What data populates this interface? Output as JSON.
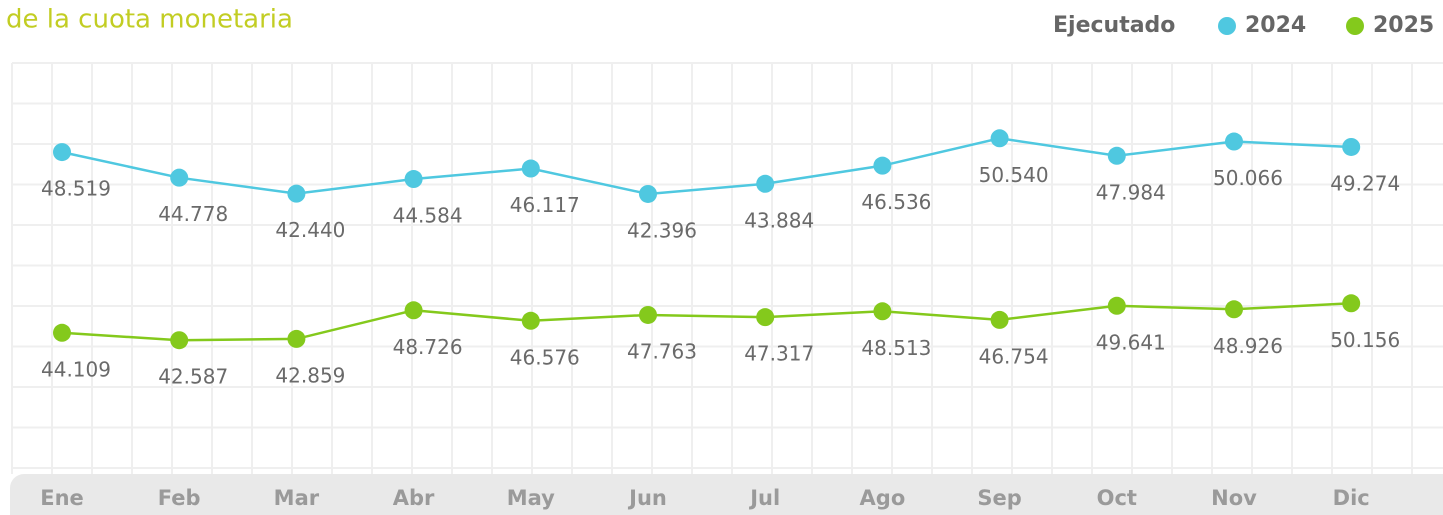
{
  "chart_data": {
    "type": "line",
    "title": "de la cuota monetaria",
    "legend_title": "Ejecutado",
    "categories": [
      "Ene",
      "Feb",
      "Mar",
      "Abr",
      "May",
      "Jun",
      "Jul",
      "Ago",
      "Sep",
      "Oct",
      "Nov",
      "Dic"
    ],
    "series": [
      {
        "name": "2024",
        "color": "#4fc8e0",
        "values": [
          48519,
          44778,
          42440,
          44584,
          46117,
          42396,
          43884,
          46536,
          50540,
          47984,
          50066,
          49274
        ],
        "value_labels": [
          "48.519",
          "44.778",
          "42.440",
          "44.584",
          "46.117",
          "42.396",
          "43.884",
          "46.536",
          "50.540",
          "47.984",
          "50.066",
          "49.274"
        ]
      },
      {
        "name": "2025",
        "color": "#84c91c",
        "axis": "y2",
        "values": [
          44109,
          42587,
          42859,
          48726,
          46576,
          47763,
          47317,
          48513,
          46754,
          49641,
          48926,
          50156
        ],
        "value_labels": [
          "44.109",
          "42.587",
          "42.859",
          "48.726",
          "46.576",
          "47.763",
          "47.317",
          "48.513",
          "46.754",
          "49.641",
          "48.926",
          "50.156"
        ]
      }
    ],
    "ylim": [
      2000,
      62000
    ],
    "y2lim": [
      16000,
      100000
    ]
  }
}
